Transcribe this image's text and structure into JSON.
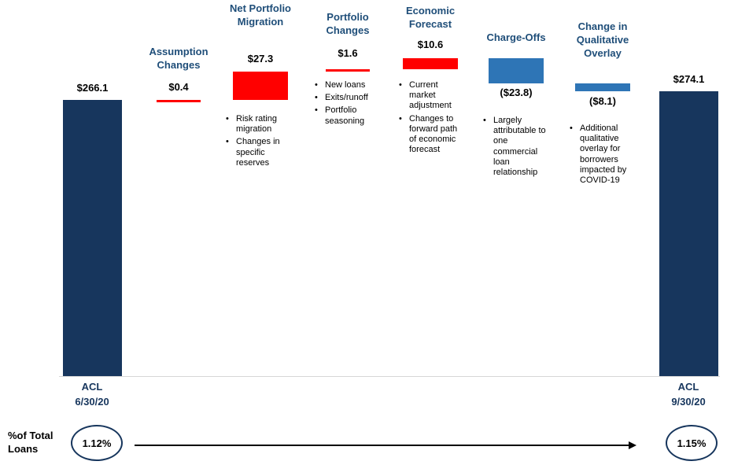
{
  "glyphs": {
    "bullet": "•"
  },
  "chart_data": {
    "type": "waterfall",
    "start": {
      "label_line1": "ACL",
      "label_line2": "6/30/20",
      "value": 266.1,
      "display": "$266.1"
    },
    "end": {
      "label_line1": "ACL",
      "label_line2": "9/30/20",
      "value": 274.1,
      "display": "$274.1"
    },
    "segments": [
      {
        "name": "Assumption Changes",
        "value": 0.4,
        "display": "$0.4",
        "direction": "increase",
        "bullets": []
      },
      {
        "name": "Net Portfolio Migration",
        "value": 27.3,
        "display": "$27.3",
        "direction": "increase",
        "bullets": [
          "Risk rating migration",
          "Changes in specific reserves"
        ]
      },
      {
        "name": "Portfolio Changes",
        "value": 1.6,
        "display": "$1.6",
        "direction": "increase",
        "bullets": [
          "New loans",
          "Exits/runoff",
          "Portfolio seasoning"
        ]
      },
      {
        "name": "Economic Forecast",
        "value": 10.6,
        "display": "$10.6",
        "direction": "increase",
        "bullets": [
          "Current market adjustment",
          "Changes to forward path of economic forecast"
        ]
      },
      {
        "name": "Charge-Offs",
        "value": -23.8,
        "display": "($23.8)",
        "direction": "decrease",
        "bullets": [
          "Largely attributable to one commercial loan relationship"
        ]
      },
      {
        "name": "Change in Qualitative Overlay",
        "value": -8.1,
        "display": "($8.1)",
        "direction": "decrease",
        "bullets": [
          "Additional qualitative overlay for borrowers impacted by COVID-19"
        ]
      }
    ],
    "footer": {
      "label_line1": "%of Total",
      "label_line2": "Loans",
      "start_pct": "1.12%",
      "end_pct": "1.15%"
    },
    "colors": {
      "bar_navy": "#17365D",
      "increase_red": "#FF0000",
      "decrease_blue": "#2E75B6",
      "title_navy": "#1F4E79"
    }
  }
}
